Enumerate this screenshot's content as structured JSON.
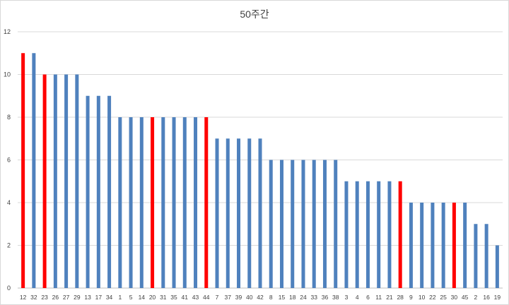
{
  "chart_data": {
    "type": "bar",
    "title": "50주간",
    "xlabel": "",
    "ylabel": "",
    "ylim": [
      0,
      12
    ],
    "yticks": [
      0,
      2,
      4,
      6,
      8,
      10,
      12
    ],
    "grid": true,
    "colors": {
      "default": "#4f81bd",
      "highlight": "#ff0000"
    },
    "categories": [
      "12",
      "32",
      "23",
      "26",
      "27",
      "29",
      "13",
      "17",
      "34",
      "1",
      "5",
      "14",
      "20",
      "31",
      "35",
      "41",
      "43",
      "44",
      "7",
      "37",
      "39",
      "40",
      "42",
      "8",
      "15",
      "18",
      "24",
      "33",
      "36",
      "38",
      "3",
      "4",
      "6",
      "11",
      "21",
      "28",
      "9",
      "10",
      "22",
      "25",
      "30",
      "45",
      "2",
      "16",
      "19"
    ],
    "values": [
      11,
      11,
      10,
      10,
      10,
      10,
      9,
      9,
      9,
      8,
      8,
      8,
      8,
      8,
      8,
      8,
      8,
      8,
      7,
      7,
      7,
      7,
      7,
      6,
      6,
      6,
      6,
      6,
      6,
      6,
      5,
      5,
      5,
      5,
      5,
      5,
      4,
      4,
      4,
      4,
      4,
      4,
      3,
      3,
      2
    ],
    "highlighted": [
      "12",
      "23",
      "20",
      "44",
      "28",
      "30"
    ]
  }
}
